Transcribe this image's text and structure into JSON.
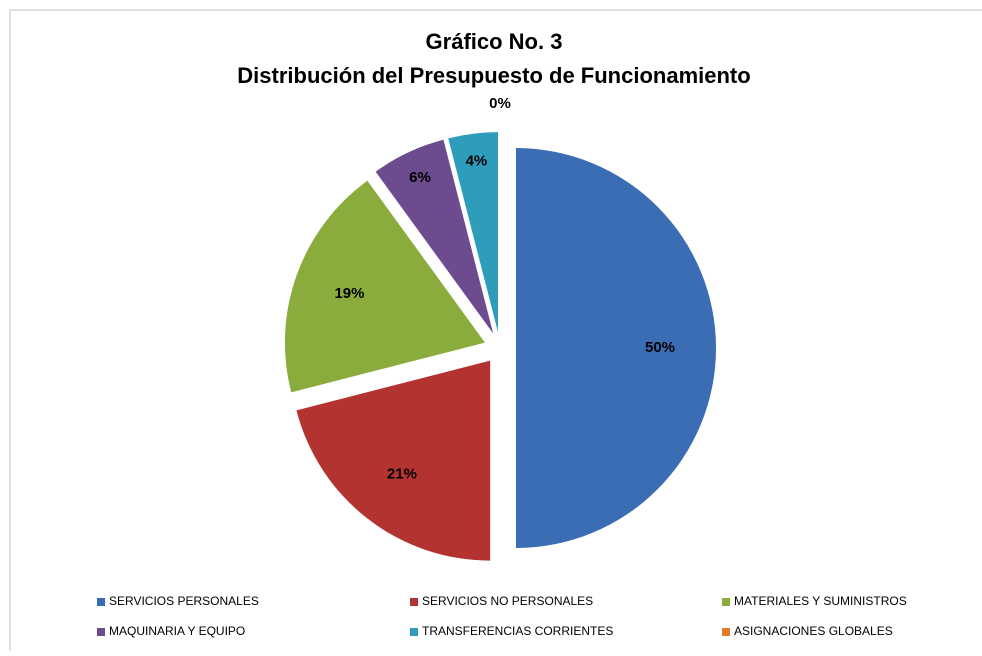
{
  "chart_data": {
    "type": "pie",
    "title": "Gráfico No. 3",
    "subtitle": "Distribución del Presupuesto de Funcionamiento",
    "categories": [
      "SERVICIOS PERSONALES",
      "SERVICIOS NO PERSONALES",
      "MATERIALES Y SUMINISTROS",
      "MAQUINARIA Y EQUIPO",
      "TRANSFERENCIAS CORRIENTES",
      "ASIGNACIONES GLOBALES"
    ],
    "values": [
      50,
      21,
      19,
      6,
      4,
      0
    ],
    "value_labels": [
      "50%",
      "21%",
      "19%",
      "6%",
      "4%",
      "0%"
    ],
    "colors": [
      "#3a6db3",
      "#b33331",
      "#89ac3d",
      "#6c4b8f",
      "#2e9cbb",
      "#e67c27"
    ],
    "legend": "bottom"
  }
}
